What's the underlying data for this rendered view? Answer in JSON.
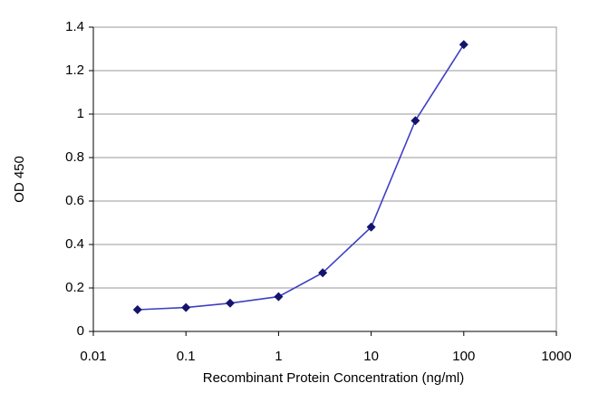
{
  "chart_data": {
    "type": "line",
    "xlabel": "Recombinant Protein Concentration (ng/ml)",
    "ylabel": "OD 450",
    "x": [
      0.03,
      0.1,
      0.3,
      1,
      3,
      10,
      30,
      100
    ],
    "series": [
      {
        "color": "#3f3fc4",
        "marker_color": "#14146e",
        "values": [
          0.1,
          0.11,
          0.13,
          0.16,
          0.27,
          0.48,
          0.97,
          1.32
        ]
      }
    ],
    "xlog": true,
    "xlim": [
      0.01,
      1000
    ],
    "xticks": [
      0.01,
      0.1,
      1,
      10,
      100,
      1000
    ],
    "ylim": [
      0,
      1.4
    ],
    "yticks": [
      0,
      0.2,
      0.4,
      0.6,
      0.8,
      1,
      1.2,
      1.4
    ],
    "grid": true
  }
}
